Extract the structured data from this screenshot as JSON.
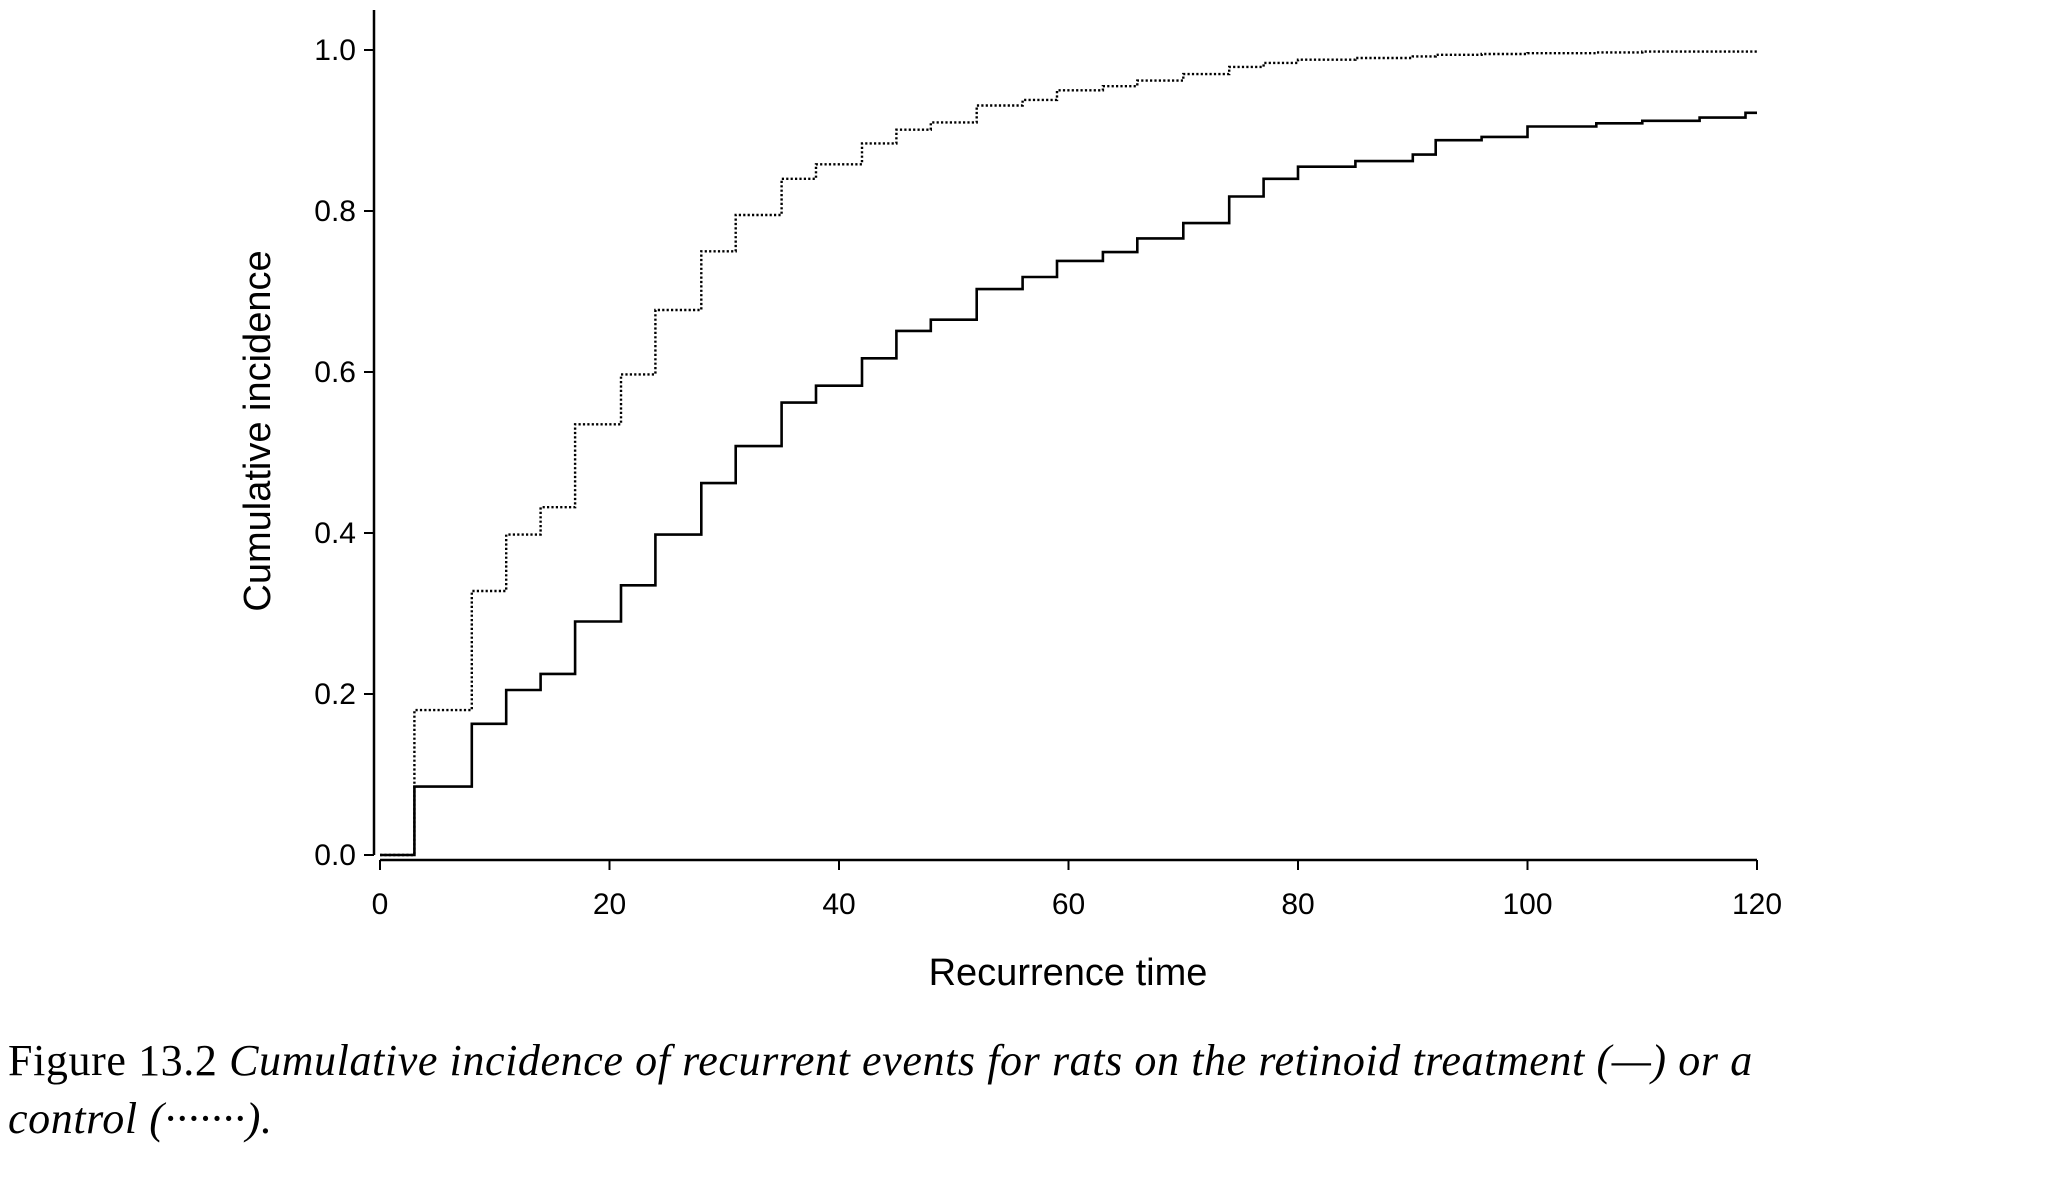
{
  "chart_data": {
    "type": "line",
    "step": "post",
    "xlabel": "Recurrence time",
    "ylabel": "Cumulative incidence",
    "xlim": [
      0,
      120
    ],
    "ylim": [
      0,
      1.0
    ],
    "xticks": [
      "0",
      "20",
      "40",
      "60",
      "80",
      "100",
      "120"
    ],
    "yticks": [
      "0.0",
      "0.2",
      "0.4",
      "0.6",
      "0.8",
      "1.0"
    ],
    "grid": false,
    "series": [
      {
        "style": "solid",
        "color": "#000000",
        "x": [
          0,
          3,
          8,
          11,
          14,
          17,
          21,
          24,
          28,
          31,
          35,
          38,
          42,
          45,
          48,
          52,
          56,
          59,
          63,
          66,
          70,
          74,
          77,
          80,
          85,
          90,
          92,
          96,
          100,
          106,
          110,
          115,
          119,
          120
        ],
        "y": [
          0,
          0.085,
          0.163,
          0.205,
          0.225,
          0.29,
          0.335,
          0.398,
          0.462,
          0.508,
          0.562,
          0.583,
          0.617,
          0.651,
          0.665,
          0.703,
          0.718,
          0.738,
          0.749,
          0.766,
          0.785,
          0.818,
          0.84,
          0.855,
          0.862,
          0.87,
          0.888,
          0.892,
          0.905,
          0.909,
          0.912,
          0.916,
          0.922,
          0.922
        ]
      },
      {
        "style": "dotted",
        "color": "#000000",
        "x": [
          0,
          3,
          8,
          11,
          14,
          17,
          21,
          24,
          28,
          31,
          35,
          38,
          42,
          45,
          48,
          52,
          56,
          59,
          63,
          66,
          70,
          74,
          77,
          80,
          85,
          90,
          92,
          96,
          100,
          106,
          110,
          115,
          120
        ],
        "y": [
          0,
          0.18,
          0.328,
          0.398,
          0.432,
          0.535,
          0.597,
          0.677,
          0.75,
          0.795,
          0.84,
          0.858,
          0.884,
          0.901,
          0.91,
          0.931,
          0.938,
          0.95,
          0.955,
          0.962,
          0.97,
          0.979,
          0.984,
          0.988,
          0.99,
          0.992,
          0.994,
          0.995,
          0.996,
          0.997,
          0.998,
          0.998,
          0.998
        ]
      }
    ]
  },
  "caption": {
    "label": "Figure 13.2",
    "text_line1": "Cumulative incidence of recurrent events for rats on the retinoid treatment (—) or a",
    "text_line2": "control (·······)."
  }
}
